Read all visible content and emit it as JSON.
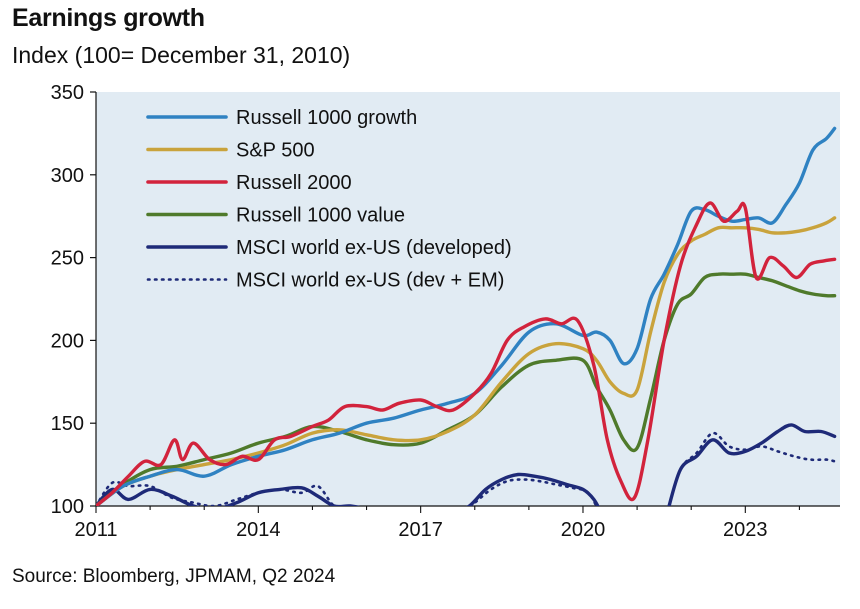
{
  "header": {
    "title": "Earnings growth",
    "subtitle": "Index (100= December 31, 2010)"
  },
  "footer": {
    "source": "Source: Bloomberg, JPMAM, Q2 2024"
  },
  "chart_data": {
    "type": "line",
    "title": "Earnings growth",
    "subtitle": "Index (100= December 31, 2010)",
    "xlabel": "",
    "ylabel": "",
    "xlim": [
      2011,
      2024.75
    ],
    "ylim": [
      100,
      350
    ],
    "yticks": [
      100,
      150,
      200,
      250,
      300,
      350
    ],
    "xticks": [
      "2011",
      "2014",
      "2017",
      "2020",
      "2023"
    ],
    "xtick_values": [
      2011,
      2014,
      2017,
      2020,
      2023
    ],
    "grid": false,
    "legend": "top-left",
    "colors": {
      "background": "#e1ebf3",
      "russell_1000_growth": "#2f82c2",
      "sp500": "#c9a33c",
      "russell_2000": "#d2233c",
      "russell_1000_value": "#4f7a2b",
      "msci_developed": "#1e2a78",
      "msci_dev_em": "#1e2a78"
    },
    "series": [
      {
        "name": "Russell 1000 growth",
        "key": "russell_1000_growth",
        "style": "solid",
        "x": [
          2011,
          2011.5,
          2012,
          2012.5,
          2013,
          2013.5,
          2014,
          2014.5,
          2015,
          2015.5,
          2016,
          2016.5,
          2017,
          2017.5,
          2018,
          2018.5,
          2019,
          2019.5,
          2020,
          2020.25,
          2020.5,
          2020.75,
          2021,
          2021.25,
          2021.5,
          2021.75,
          2022,
          2022.25,
          2022.5,
          2022.75,
          2023,
          2023.25,
          2023.5,
          2023.75,
          2024,
          2024.25,
          2024.5,
          2024.65
        ],
        "y": [
          100,
          112,
          118,
          122,
          118,
          125,
          130,
          134,
          140,
          144,
          150,
          153,
          158,
          162,
          168,
          185,
          205,
          210,
          203,
          205,
          200,
          186,
          195,
          225,
          240,
          258,
          278,
          279,
          275,
          272,
          273,
          274,
          271,
          282,
          295,
          315,
          322,
          328
        ]
      },
      {
        "name": "S&P 500",
        "key": "sp500",
        "style": "solid",
        "x": [
          2011,
          2011.5,
          2012,
          2012.5,
          2013,
          2013.5,
          2014,
          2014.5,
          2015,
          2015.5,
          2016,
          2016.5,
          2017,
          2017.5,
          2018,
          2018.5,
          2019,
          2019.5,
          2020,
          2020.25,
          2020.5,
          2020.75,
          2021,
          2021.25,
          2021.5,
          2021.75,
          2022,
          2022.25,
          2022.5,
          2022.75,
          2023,
          2023.25,
          2023.5,
          2023.75,
          2024,
          2024.25,
          2024.5,
          2024.65
        ],
        "y": [
          100,
          112,
          118,
          122,
          125,
          128,
          132,
          137,
          144,
          146,
          143,
          140,
          140,
          145,
          155,
          175,
          192,
          198,
          195,
          188,
          175,
          168,
          170,
          205,
          235,
          252,
          260,
          264,
          268,
          268,
          268,
          267,
          265,
          265,
          266,
          268,
          271,
          274
        ]
      },
      {
        "name": "Russell 2000",
        "key": "russell_2000",
        "style": "solid",
        "x": [
          2011,
          2011.3,
          2011.6,
          2011.9,
          2012.2,
          2012.45,
          2012.6,
          2012.8,
          2013.1,
          2013.4,
          2013.7,
          2014,
          2014.3,
          2014.6,
          2015,
          2015.3,
          2015.6,
          2016,
          2016.3,
          2016.6,
          2017,
          2017.3,
          2017.6,
          2018,
          2018.3,
          2018.6,
          2018.9,
          2019.3,
          2019.6,
          2019.9,
          2020.2,
          2020.45,
          2020.7,
          2020.95,
          2021.2,
          2021.5,
          2021.8,
          2022.1,
          2022.35,
          2022.6,
          2022.85,
          2023.0,
          2023.2,
          2023.45,
          2023.7,
          2023.95,
          2024.2,
          2024.45,
          2024.65
        ],
        "y": [
          100,
          108,
          118,
          127,
          125,
          140,
          128,
          138,
          128,
          125,
          130,
          128,
          140,
          142,
          148,
          152,
          160,
          160,
          158,
          162,
          164,
          160,
          158,
          168,
          180,
          200,
          208,
          213,
          210,
          212,
          185,
          140,
          115,
          105,
          140,
          200,
          245,
          270,
          283,
          272,
          278,
          280,
          238,
          250,
          245,
          238,
          246,
          248,
          249
        ]
      },
      {
        "name": "Russell 1000 value",
        "key": "russell_1000_value",
        "style": "solid",
        "x": [
          2011,
          2011.5,
          2012,
          2012.5,
          2013,
          2013.5,
          2014,
          2014.5,
          2015,
          2015.5,
          2016,
          2016.5,
          2017,
          2017.5,
          2018,
          2018.5,
          2019,
          2019.5,
          2020,
          2020.25,
          2020.5,
          2020.75,
          2021,
          2021.25,
          2021.5,
          2021.75,
          2022,
          2022.25,
          2022.5,
          2022.75,
          2023,
          2023.25,
          2023.5,
          2023.75,
          2024,
          2024.25,
          2024.5,
          2024.65
        ],
        "y": [
          100,
          113,
          122,
          124,
          128,
          132,
          138,
          142,
          148,
          145,
          140,
          137,
          138,
          146,
          155,
          172,
          185,
          188,
          188,
          172,
          158,
          140,
          135,
          165,
          200,
          222,
          228,
          238,
          240,
          240,
          240,
          238,
          236,
          233,
          230,
          228,
          227,
          227
        ]
      },
      {
        "name": "MSCI world ex-US (developed)",
        "key": "msci_developed",
        "style": "solid",
        "segments": [
          {
            "x": [
              2011,
              2011.3,
              2011.6,
              2012,
              2012.4,
              2012.8,
              2013.2,
              2013.6,
              2014,
              2014.4,
              2014.8,
              2015.1,
              2015.4,
              2015.7,
              2016,
              2016.2
            ],
            "y": [
              100,
              110,
              104,
              110,
              106,
              100,
              98,
              102,
              108,
              110,
              111,
              106,
              100,
              100,
              98,
              95
            ]
          },
          {
            "x": [
              2017.6,
              2017.9,
              2018.2,
              2018.5,
              2018.8,
              2019.1,
              2019.4,
              2019.7,
              2020,
              2020.2,
              2020.35
            ],
            "y": [
              95,
              100,
              110,
              116,
              119,
              118,
              116,
              113,
              110,
              104,
              95
            ]
          },
          {
            "x": [
              2021.55,
              2021.8,
              2022.1,
              2022.4,
              2022.7,
              2023,
              2023.3,
              2023.6,
              2023.85,
              2024.1,
              2024.4,
              2024.65
            ],
            "y": [
              95,
              122,
              130,
              140,
              132,
              133,
              138,
              145,
              149,
              145,
              145,
              142
            ]
          }
        ]
      },
      {
        "name": "MSCI world ex-US (dev + EM)",
        "key": "msci_dev_em",
        "style": "dotted",
        "segments": [
          {
            "x": [
              2011,
              2011.3,
              2011.6,
              2012,
              2012.4,
              2012.8,
              2013.2,
              2013.6,
              2014,
              2014.4,
              2014.8,
              2015.1,
              2015.4,
              2015.7,
              2016,
              2016.2
            ],
            "y": [
              100,
              114,
              112,
              112,
              105,
              102,
              100,
              104,
              108,
              110,
              108,
              112,
              100,
              98,
              97,
              95
            ]
          },
          {
            "x": [
              2017.7,
              2018,
              2018.3,
              2018.6,
              2018.9,
              2019.2,
              2019.5,
              2019.8,
              2020.1,
              2020.3
            ],
            "y": [
              95,
              102,
              110,
              115,
              116,
              115,
              113,
              111,
              108,
              96
            ]
          },
          {
            "x": [
              2021.55,
              2021.8,
              2022.1,
              2022.4,
              2022.7,
              2023,
              2023.3,
              2023.6,
              2023.9,
              2024.2,
              2024.5,
              2024.65
            ],
            "y": [
              95,
              122,
              132,
              144,
              136,
              134,
              136,
              133,
              130,
              128,
              128,
              127
            ]
          }
        ]
      }
    ]
  }
}
